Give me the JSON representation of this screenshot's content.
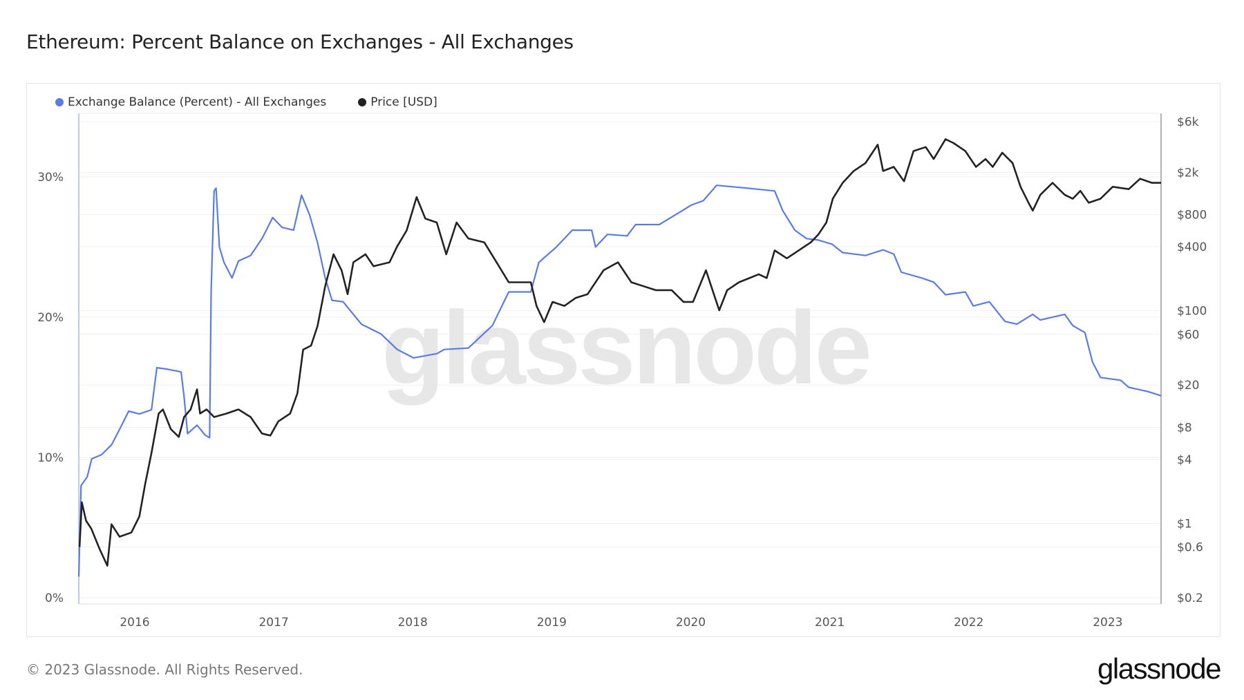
{
  "title": "Ethereum: Percent Balance on Exchanges - All Exchanges",
  "footer": {
    "copyright": "© 2023 Glassnode. All Rights Reserved.",
    "logo_text": "glassnode"
  },
  "watermark": "glassnode",
  "chart_data": {
    "type": "line",
    "title": "Ethereum: Percent Balance on Exchanges - All Exchanges",
    "legend_placement": "top-left",
    "grid": true,
    "x_axis": {
      "type": "date",
      "range": [
        "2015-08-07",
        "2023-05-21"
      ],
      "tick_labels": [
        "2016",
        "2017",
        "2018",
        "2019",
        "2020",
        "2021",
        "2022",
        "2023"
      ]
    },
    "y_left": {
      "range": [
        0,
        33
      ],
      "unit": "%",
      "tick_labels": [
        "0%",
        "10%",
        "20%",
        "30%"
      ],
      "ticks": [
        0,
        10,
        20,
        30
      ]
    },
    "y_right": {
      "scale": "log",
      "range": [
        0.2,
        6000
      ],
      "tick_labels": [
        "$0.2",
        "$0.6",
        "$1",
        "$4",
        "$8",
        "$20",
        "$60",
        "$100",
        "$400",
        "$800",
        "$2k",
        "$6k"
      ],
      "ticks": [
        0.2,
        0.6,
        1,
        4,
        8,
        20,
        60,
        100,
        400,
        800,
        2000,
        6000
      ]
    },
    "series": [
      {
        "name": "Exchange Balance (Percent) - All Exchanges",
        "axis": "left",
        "color": "#5b7be4",
        "points": [
          [
            "2015-08-07",
            1.5
          ],
          [
            "2015-08-13",
            8.0
          ],
          [
            "2015-08-29",
            8.6
          ],
          [
            "2015-09-10",
            9.9
          ],
          [
            "2015-10-06",
            10.2
          ],
          [
            "2015-11-01",
            10.9
          ],
          [
            "2015-11-22",
            12.0
          ],
          [
            "2015-12-16",
            13.3
          ],
          [
            "2016-01-13",
            13.1
          ],
          [
            "2016-02-14",
            13.4
          ],
          [
            "2016-02-28",
            16.4
          ],
          [
            "2016-03-25",
            16.3
          ],
          [
            "2016-05-02",
            16.1
          ],
          [
            "2016-05-10",
            14.3
          ],
          [
            "2016-05-19",
            11.7
          ],
          [
            "2016-06-13",
            12.3
          ],
          [
            "2016-07-04",
            11.6
          ],
          [
            "2016-07-16",
            11.4
          ],
          [
            "2016-07-20",
            21.9
          ],
          [
            "2016-07-28",
            29.0
          ],
          [
            "2016-08-02",
            29.2
          ],
          [
            "2016-08-11",
            25.0
          ],
          [
            "2016-08-23",
            23.9
          ],
          [
            "2016-09-13",
            22.8
          ],
          [
            "2016-09-30",
            24.0
          ],
          [
            "2016-11-01",
            24.4
          ],
          [
            "2016-12-01",
            25.6
          ],
          [
            "2016-12-29",
            27.1
          ],
          [
            "2017-01-23",
            26.4
          ],
          [
            "2017-02-22",
            26.2
          ],
          [
            "2017-03-15",
            28.7
          ],
          [
            "2017-04-05",
            27.3
          ],
          [
            "2017-04-26",
            25.3
          ],
          [
            "2017-05-16",
            22.8
          ],
          [
            "2017-06-03",
            21.2
          ],
          [
            "2017-07-02",
            21.1
          ],
          [
            "2017-08-19",
            19.5
          ],
          [
            "2017-10-10",
            18.8
          ],
          [
            "2017-11-21",
            17.7
          ],
          [
            "2018-01-03",
            17.1
          ],
          [
            "2018-03-05",
            17.4
          ],
          [
            "2018-03-25",
            17.7
          ],
          [
            "2018-05-27",
            17.8
          ],
          [
            "2018-07-29",
            19.4
          ],
          [
            "2018-09-10",
            21.8
          ],
          [
            "2018-11-07",
            21.8
          ],
          [
            "2018-11-28",
            23.9
          ],
          [
            "2019-01-13",
            25.0
          ],
          [
            "2019-02-24",
            26.2
          ],
          [
            "2019-04-16",
            26.2
          ],
          [
            "2019-04-26",
            25.0
          ],
          [
            "2019-05-27",
            25.9
          ],
          [
            "2019-07-18",
            25.8
          ],
          [
            "2019-08-09",
            26.6
          ],
          [
            "2019-10-10",
            26.6
          ],
          [
            "2019-11-22",
            27.3
          ],
          [
            "2020-01-03",
            28.0
          ],
          [
            "2020-02-03",
            28.3
          ],
          [
            "2020-03-09",
            29.4
          ],
          [
            "2020-05-27",
            29.2
          ],
          [
            "2020-08-09",
            29.0
          ],
          [
            "2020-08-30",
            27.6
          ],
          [
            "2020-10-01",
            26.2
          ],
          [
            "2020-11-01",
            25.6
          ],
          [
            "2020-12-02",
            25.5
          ],
          [
            "2021-01-07",
            25.2
          ],
          [
            "2021-02-04",
            24.6
          ],
          [
            "2021-04-05",
            24.4
          ],
          [
            "2021-05-21",
            24.8
          ],
          [
            "2021-06-18",
            24.5
          ],
          [
            "2021-07-08",
            23.2
          ],
          [
            "2021-08-30",
            22.8
          ],
          [
            "2021-10-01",
            22.5
          ],
          [
            "2021-11-01",
            21.6
          ],
          [
            "2021-12-23",
            21.8
          ],
          [
            "2022-01-13",
            20.8
          ],
          [
            "2022-02-24",
            21.1
          ],
          [
            "2022-04-06",
            19.7
          ],
          [
            "2022-05-07",
            19.5
          ],
          [
            "2022-06-18",
            20.2
          ],
          [
            "2022-07-08",
            19.8
          ],
          [
            "2022-09-10",
            20.2
          ],
          [
            "2022-10-01",
            19.4
          ],
          [
            "2022-11-02",
            18.9
          ],
          [
            "2022-11-22",
            16.8
          ],
          [
            "2022-12-13",
            15.7
          ],
          [
            "2023-02-04",
            15.5
          ],
          [
            "2023-02-25",
            15.0
          ],
          [
            "2023-04-16",
            14.7
          ],
          [
            "2023-05-21",
            14.4
          ]
        ]
      },
      {
        "name": "Price [USD]",
        "axis": "right",
        "color": "#222222",
        "points": [
          [
            "2015-08-09",
            0.6
          ],
          [
            "2015-08-15",
            1.58
          ],
          [
            "2015-08-26",
            1.06
          ],
          [
            "2015-09-09",
            0.89
          ],
          [
            "2015-09-30",
            0.58
          ],
          [
            "2015-10-21",
            0.4
          ],
          [
            "2015-11-01",
            0.98
          ],
          [
            "2015-11-22",
            0.75
          ],
          [
            "2015-12-23",
            0.82
          ],
          [
            "2016-01-13",
            1.16
          ],
          [
            "2016-01-28",
            2.3
          ],
          [
            "2016-02-14",
            4.6
          ],
          [
            "2016-03-04",
            10.8
          ],
          [
            "2016-03-15",
            11.8
          ],
          [
            "2016-04-05",
            7.7
          ],
          [
            "2016-04-26",
            6.5
          ],
          [
            "2016-05-10",
            10.0
          ],
          [
            "2016-05-27",
            11.8
          ],
          [
            "2016-06-13",
            18.2
          ],
          [
            "2016-06-21",
            10.8
          ],
          [
            "2016-07-08",
            11.8
          ],
          [
            "2016-07-28",
            10.0
          ],
          [
            "2016-08-30",
            10.8
          ],
          [
            "2016-09-30",
            11.8
          ],
          [
            "2016-11-01",
            10.0
          ],
          [
            "2016-12-01",
            7.0
          ],
          [
            "2016-12-23",
            6.7
          ],
          [
            "2017-01-13",
            9.1
          ],
          [
            "2017-02-13",
            10.8
          ],
          [
            "2017-03-04",
            16.7
          ],
          [
            "2017-03-19",
            43
          ],
          [
            "2017-04-09",
            47
          ],
          [
            "2017-04-26",
            72
          ],
          [
            "2017-05-16",
            170
          ],
          [
            "2017-06-07",
            339
          ],
          [
            "2017-06-28",
            240
          ],
          [
            "2017-07-14",
            143
          ],
          [
            "2017-07-29",
            285
          ],
          [
            "2017-08-30",
            339
          ],
          [
            "2017-09-20",
            262
          ],
          [
            "2017-11-01",
            285
          ],
          [
            "2017-11-21",
            402
          ],
          [
            "2017-12-16",
            568
          ],
          [
            "2018-01-11",
            1169
          ],
          [
            "2018-02-03",
            735
          ],
          [
            "2018-03-05",
            675
          ],
          [
            "2018-03-30",
            339
          ],
          [
            "2018-04-26",
            675
          ],
          [
            "2018-05-27",
            478
          ],
          [
            "2018-07-08",
            439
          ],
          [
            "2018-08-09",
            285
          ],
          [
            "2018-09-10",
            185
          ],
          [
            "2018-11-07",
            185
          ],
          [
            "2018-11-22",
            111
          ],
          [
            "2018-12-12",
            78
          ],
          [
            "2019-01-03",
            121
          ],
          [
            "2019-02-03",
            111
          ],
          [
            "2019-03-05",
            132
          ],
          [
            "2019-04-05",
            143
          ],
          [
            "2019-05-17",
            240
          ],
          [
            "2019-06-24",
            285
          ],
          [
            "2019-07-29",
            185
          ],
          [
            "2019-08-30",
            170
          ],
          [
            "2019-10-01",
            156
          ],
          [
            "2019-11-12",
            156
          ],
          [
            "2019-12-13",
            121
          ],
          [
            "2020-01-07",
            121
          ],
          [
            "2020-02-10",
            240
          ],
          [
            "2020-03-05",
            132
          ],
          [
            "2020-03-16",
            101
          ],
          [
            "2020-04-06",
            156
          ],
          [
            "2020-05-07",
            185
          ],
          [
            "2020-06-28",
            220
          ],
          [
            "2020-07-19",
            203
          ],
          [
            "2020-08-09",
            369
          ],
          [
            "2020-09-10",
            311
          ],
          [
            "2020-10-11",
            369
          ],
          [
            "2020-11-12",
            439
          ],
          [
            "2020-12-02",
            521
          ],
          [
            "2020-12-23",
            675
          ],
          [
            "2021-01-09",
            1130
          ],
          [
            "2021-02-04",
            1592
          ],
          [
            "2021-03-05",
            2061
          ],
          [
            "2021-04-05",
            2449
          ],
          [
            "2021-05-07",
            3640
          ],
          [
            "2021-05-21",
            2061
          ],
          [
            "2021-06-18",
            2250
          ],
          [
            "2021-07-15",
            1649
          ],
          [
            "2021-08-09",
            3170
          ],
          [
            "2021-09-10",
            3460
          ],
          [
            "2021-10-01",
            2670
          ],
          [
            "2021-11-01",
            4100
          ],
          [
            "2021-11-22",
            3770
          ],
          [
            "2021-12-23",
            3170
          ],
          [
            "2022-01-20",
            2250
          ],
          [
            "2022-02-14",
            2670
          ],
          [
            "2022-03-05",
            2250
          ],
          [
            "2022-03-30",
            3060
          ],
          [
            "2022-04-26",
            2449
          ],
          [
            "2022-05-17",
            1462
          ],
          [
            "2022-06-07",
            1036
          ],
          [
            "2022-06-18",
            873
          ],
          [
            "2022-07-08",
            1230
          ],
          [
            "2022-08-09",
            1592
          ],
          [
            "2022-09-10",
            1230
          ],
          [
            "2022-10-01",
            1130
          ],
          [
            "2022-10-21",
            1340
          ],
          [
            "2022-11-12",
            1036
          ],
          [
            "2022-12-13",
            1130
          ],
          [
            "2023-01-14",
            1462
          ],
          [
            "2023-02-25",
            1390
          ],
          [
            "2023-03-27",
            1740
          ],
          [
            "2023-04-27",
            1592
          ],
          [
            "2023-05-21",
            1592
          ]
        ]
      }
    ]
  }
}
